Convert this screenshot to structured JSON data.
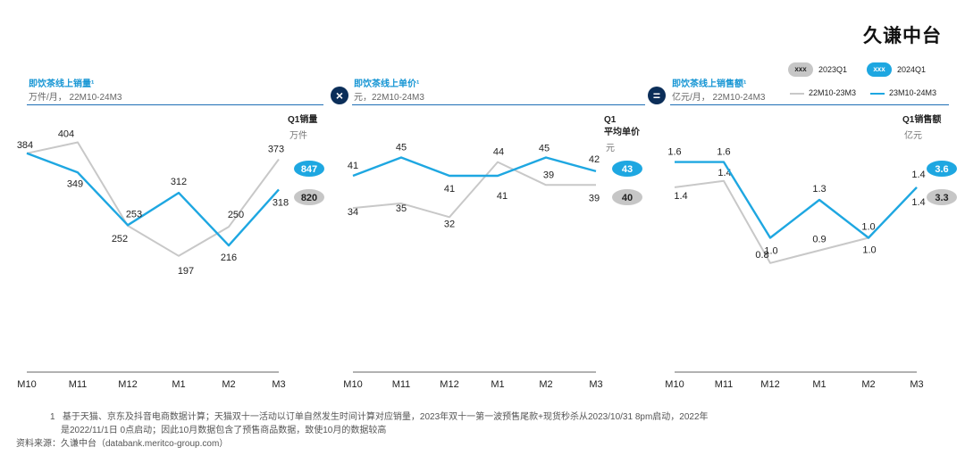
{
  "brand": "久谦中台",
  "legend": {
    "pill_2023_text": "xxx",
    "pill_2023_label": "2023Q1",
    "pill_2024_text": "xxx",
    "pill_2024_label": "2024Q1",
    "line_2223_label": "22M10-23M3",
    "line_2324_label": "23M10-24M3",
    "color_2223": "#c8c8c8",
    "color_2324": "#1ea7e1"
  },
  "operators": [
    "×",
    "="
  ],
  "chart_data": [
    {
      "type": "line",
      "title": "即饮茶线上销量¹",
      "subtitle": "万件/月， 22M10-24M3",
      "categories": [
        "M10",
        "M11",
        "M12",
        "M1",
        "M2",
        "M3"
      ],
      "series": [
        {
          "name": "22M10-23M3",
          "values": [
            384,
            404,
            252,
            197,
            250,
            373
          ]
        },
        {
          "name": "23M10-24M3",
          "values": [
            384,
            349,
            253,
            312,
            216,
            318
          ]
        }
      ],
      "value_labels": {
        "22M10-23M3": [
          "384",
          "404",
          "252",
          "197",
          "250",
          "373"
        ],
        "23M10-24M3": [
          "",
          "349",
          "253",
          "312",
          "216",
          "318"
        ]
      },
      "ylim": [
        0,
        460
      ],
      "q1_label": "Q1销量",
      "q1_unit": "万件",
      "q1_2024": "847",
      "q1_2023": "820"
    },
    {
      "type": "line",
      "title": "即饮茶线上单价¹",
      "subtitle": "元，22M10-24M3",
      "categories": [
        "M10",
        "M11",
        "M12",
        "M1",
        "M2",
        "M3"
      ],
      "series": [
        {
          "name": "22M10-23M3",
          "values": [
            34,
            35,
            32,
            44,
            39,
            39
          ]
        },
        {
          "name": "23M10-24M3",
          "values": [
            41,
            45,
            41,
            41,
            45,
            42
          ]
        }
      ],
      "value_labels": {
        "22M10-23M3": [
          "34",
          "35",
          "32",
          "44",
          "39",
          "39"
        ],
        "23M10-24M3": [
          "41",
          "45",
          "41",
          "41",
          "45",
          "42"
        ]
      },
      "ylim": [
        0,
        55
      ],
      "q1_label": "Q1平均单价",
      "q1_label_line1": "Q1",
      "q1_label_line2": "平均单价",
      "q1_unit": "元",
      "q1_2024": "43",
      "q1_2023": "40"
    },
    {
      "type": "line",
      "title": "即饮茶线上销售额¹",
      "subtitle": "亿元/月， 22M10-24M3",
      "categories": [
        "M10",
        "M11",
        "M12",
        "M1",
        "M2",
        "M3"
      ],
      "series": [
        {
          "name": "22M10-23M3",
          "values": [
            1.4,
            1.45,
            0.8,
            0.9,
            1.0,
            1.4
          ]
        },
        {
          "name": "23M10-24M3",
          "values": [
            1.6,
            1.6,
            1.0,
            1.3,
            1.0,
            1.4
          ]
        }
      ],
      "value_labels": {
        "22M10-23M3": [
          "1.4",
          "1.4",
          "0.8",
          "0.9",
          "1.0",
          "1.4"
        ],
        "23M10-24M3": [
          "1.6",
          "1.6",
          "1.0",
          "1.3",
          "1.0",
          "1.4"
        ]
      },
      "ylim": [
        0,
        2.0
      ],
      "q1_label": "Q1销售额",
      "q1_unit": "亿元",
      "q1_2024": "3.6",
      "q1_2023": "3.3"
    }
  ],
  "footnote_number": "1",
  "footnote_line1": "基于天猫、京东及抖音电商数据计算；天猫双十一活动以订单自然发生时间计算对应销量，2023年双十一第一波预售尾款+现货秒杀从2023/10/31 8pm启动，2022年",
  "footnote_line2": "是2022/11/1日 0点启动；因此10月数据包含了预售商品数据，致使10月的数据较高",
  "source": "资料来源：久谦中台（databank.meritco-group.com）"
}
